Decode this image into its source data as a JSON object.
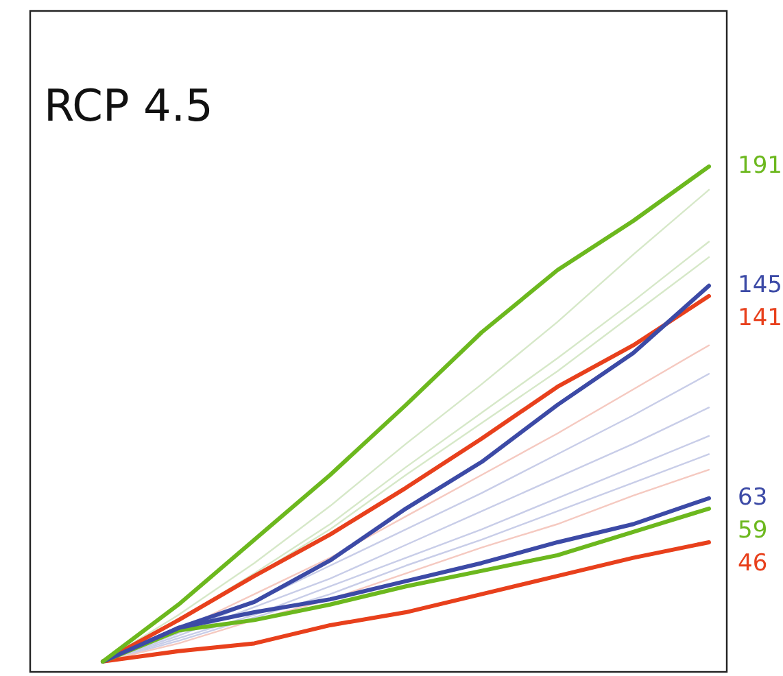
{
  "chart_data": {
    "type": "line",
    "title": "RCP 4.5",
    "categories": [
      null,
      null,
      null,
      null,
      null,
      null,
      null,
      null,
      null
    ],
    "ylim": [
      -4,
      251
    ],
    "marker": "none",
    "line_style": "solid",
    "series": [
      {
        "color": "#d6e8c8",
        "values": [
          0,
          18,
          38,
          60,
          84,
          107,
          131,
          157,
          182
        ]
      },
      {
        "color": "#d6e8c8",
        "values": [
          0,
          16,
          34,
          53,
          75,
          96,
          117,
          139,
          162
        ]
      },
      {
        "color": "#d6e8c8",
        "values": [
          0,
          16,
          33,
          51,
          72,
          92,
          112,
          134,
          156
        ]
      },
      {
        "color": "#f5c9c0",
        "values": [
          0,
          12,
          26,
          40,
          56,
          72,
          88,
          105,
          122
        ]
      },
      {
        "color": "#c8cde8",
        "values": [
          0,
          11,
          23,
          37,
          51,
          65,
          80,
          95,
          111
        ]
      },
      {
        "color": "#c8cde8",
        "values": [
          0,
          10,
          21,
          32,
          45,
          58,
          71,
          84,
          98
        ]
      },
      {
        "color": "#c8cde8",
        "values": [
          0,
          9,
          18,
          29,
          40,
          51,
          63,
          75,
          87
        ]
      },
      {
        "color": "#c8cde8",
        "values": [
          0,
          8,
          17,
          26,
          37,
          47,
          58,
          69,
          80
        ]
      },
      {
        "color": "#f5c9c0",
        "values": [
          0,
          7,
          16,
          24,
          34,
          44,
          53,
          64,
          74
        ]
      },
      {
        "color": "#e8401c",
        "values": [
          0,
          4,
          7,
          14,
          19,
          26,
          33,
          40,
          46
        ],
        "value_labels": [
          null,
          null,
          null,
          null,
          null,
          null,
          null,
          null,
          "46"
        ]
      },
      {
        "color": "#6cb81e",
        "values": [
          0,
          12,
          16,
          22,
          29,
          35,
          41,
          50,
          59
        ],
        "value_labels": [
          null,
          null,
          null,
          null,
          null,
          null,
          null,
          null,
          "59"
        ]
      },
      {
        "color": "#3c4aa6",
        "values": [
          0,
          13,
          19,
          24,
          31,
          38,
          46,
          53,
          63
        ],
        "value_labels": [
          null,
          null,
          null,
          null,
          null,
          null,
          null,
          null,
          "63"
        ]
      },
      {
        "color": "#e8401c",
        "values": [
          0,
          16,
          33,
          49,
          67,
          86,
          106,
          122,
          141
        ],
        "value_labels": [
          null,
          null,
          null,
          null,
          null,
          null,
          null,
          null,
          "141"
        ]
      },
      {
        "color": "#3c4aa6",
        "values": [
          0,
          13,
          23,
          39,
          59,
          77,
          99,
          119,
          145
        ],
        "value_labels": [
          null,
          null,
          null,
          null,
          null,
          null,
          null,
          null,
          "145"
        ]
      },
      {
        "color": "#6cb81e",
        "values": [
          0,
          22,
          47,
          72,
          99,
          127,
          151,
          170,
          191
        ],
        "value_labels": [
          null,
          null,
          null,
          null,
          null,
          null,
          null,
          null,
          "191"
        ]
      }
    ]
  }
}
